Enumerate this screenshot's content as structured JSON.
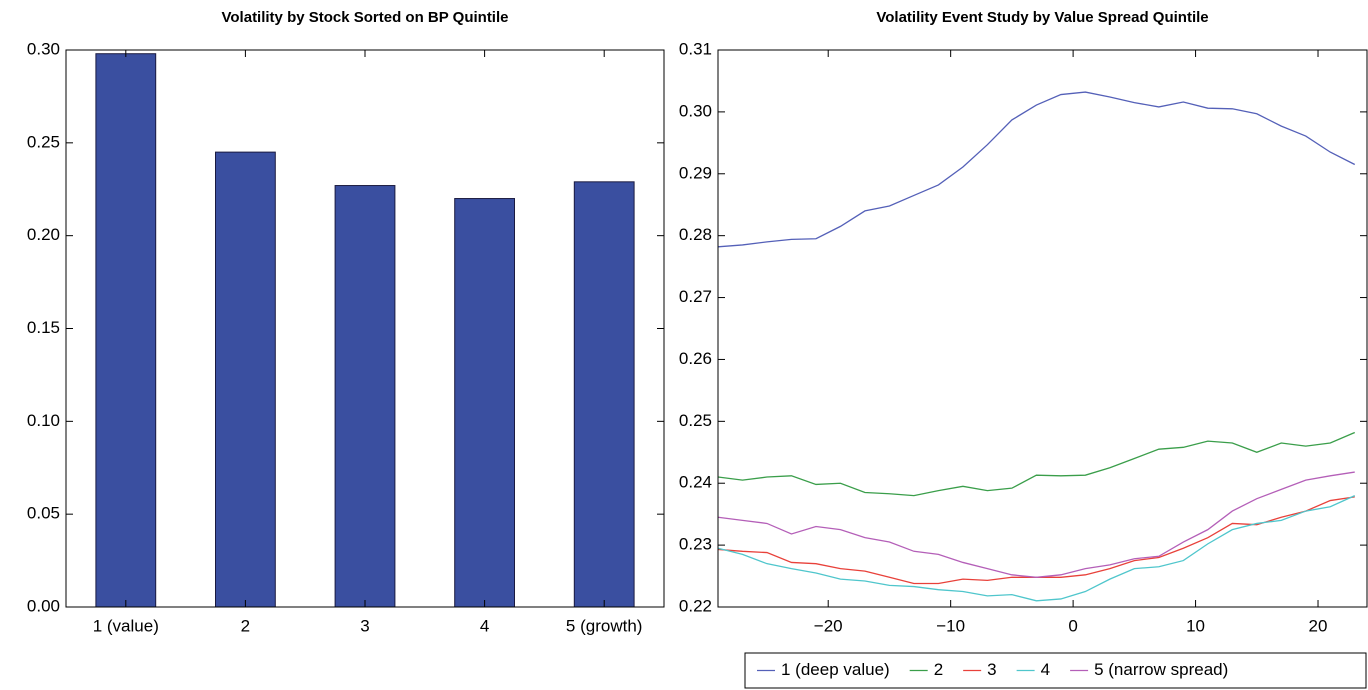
{
  "chart_data": [
    {
      "type": "bar",
      "title": "Volatility by Stock Sorted on BP Quintile",
      "categories": [
        "1 (value)",
        "2",
        "3",
        "4",
        "5 (growth)"
      ],
      "values": [
        0.298,
        0.245,
        0.227,
        0.22,
        0.229
      ],
      "color": "#3a4fa0",
      "ylim": [
        0,
        0.3
      ],
      "yticks": [
        {
          "value": 0,
          "label": "0.00"
        },
        0.05,
        {
          "value": 0.1,
          "label": "0.10"
        },
        0.15,
        {
          "value": 0.2,
          "label": "0.20"
        },
        0.25,
        {
          "value": 0.3,
          "label": "0.30"
        }
      ]
    },
    {
      "type": "line",
      "title": "Volatility Event Study by Value Spread Quintile",
      "x": [
        -29,
        -27,
        -25,
        -23,
        -21,
        -19,
        -17,
        -15,
        -13,
        -11,
        -9,
        -7,
        -5,
        -3,
        -1,
        1,
        3,
        5,
        7,
        9,
        11,
        13,
        15,
        17,
        19,
        21,
        23
      ],
      "series": [
        {
          "name": "1 (deep value)",
          "color": "#5460b8",
          "values": [
            0.2782,
            0.2785,
            0.279,
            0.2794,
            0.2795,
            0.2815,
            0.284,
            0.2848,
            0.2865,
            0.2882,
            0.2911,
            0.2947,
            0.2987,
            0.3011,
            0.3028,
            0.3032,
            0.3024,
            0.3015,
            0.3008,
            0.3016,
            0.3006,
            0.3005,
            0.2997,
            0.2977,
            0.2961,
            0.2935,
            0.2915
          ]
        },
        {
          "name": "2",
          "color": "#3a9e4a",
          "values": [
            0.241,
            0.2405,
            0.241,
            0.2412,
            0.2398,
            0.24,
            0.2385,
            0.2383,
            0.238,
            0.2388,
            0.2395,
            0.2388,
            0.2392,
            0.2413,
            0.2412,
            0.2413,
            0.2425,
            0.244,
            0.2455,
            0.2458,
            0.2468,
            0.2465,
            0.245,
            0.2465,
            0.246,
            0.2465,
            0.2482
          ]
        },
        {
          "name": "3",
          "color": "#e8413a",
          "values": [
            0.2293,
            0.229,
            0.2288,
            0.2272,
            0.227,
            0.2262,
            0.2258,
            0.2248,
            0.2238,
            0.2238,
            0.2245,
            0.2243,
            0.2248,
            0.2248,
            0.2248,
            0.2252,
            0.2262,
            0.2275,
            0.228,
            0.2295,
            0.2312,
            0.2335,
            0.2333,
            0.2345,
            0.2355,
            0.2372,
            0.2378
          ]
        },
        {
          "name": "4",
          "color": "#4fc6cc",
          "values": [
            0.2295,
            0.2285,
            0.227,
            0.2262,
            0.2255,
            0.2245,
            0.2242,
            0.2235,
            0.2233,
            0.2228,
            0.2225,
            0.2218,
            0.222,
            0.221,
            0.2213,
            0.2225,
            0.2245,
            0.2262,
            0.2265,
            0.2275,
            0.2302,
            0.2325,
            0.2335,
            0.234,
            0.2355,
            0.2362,
            0.238
          ]
        },
        {
          "name": "5 (narrow spread)",
          "color": "#b45fb8",
          "values": [
            0.2345,
            0.234,
            0.2335,
            0.2318,
            0.233,
            0.2325,
            0.2312,
            0.2305,
            0.229,
            0.2285,
            0.2272,
            0.2262,
            0.2252,
            0.2248,
            0.2252,
            0.2262,
            0.2268,
            0.2278,
            0.2282,
            0.2305,
            0.2325,
            0.2355,
            0.2375,
            0.239,
            0.2405,
            0.2412,
            0.2418
          ]
        }
      ],
      "xlim": [
        -29,
        24
      ],
      "xticks": [
        {
          "value": -20,
          "label": "−20"
        },
        {
          "value": -10,
          "label": "−10"
        },
        0,
        10,
        20
      ],
      "ylim": [
        0.22,
        0.31
      ],
      "yticks": [
        0.22,
        0.23,
        0.24,
        0.25,
        0.26,
        0.27,
        0.28,
        0.29,
        {
          "value": 0.3,
          "label": "0.30"
        },
        0.31
      ],
      "legend": "bottom"
    }
  ]
}
